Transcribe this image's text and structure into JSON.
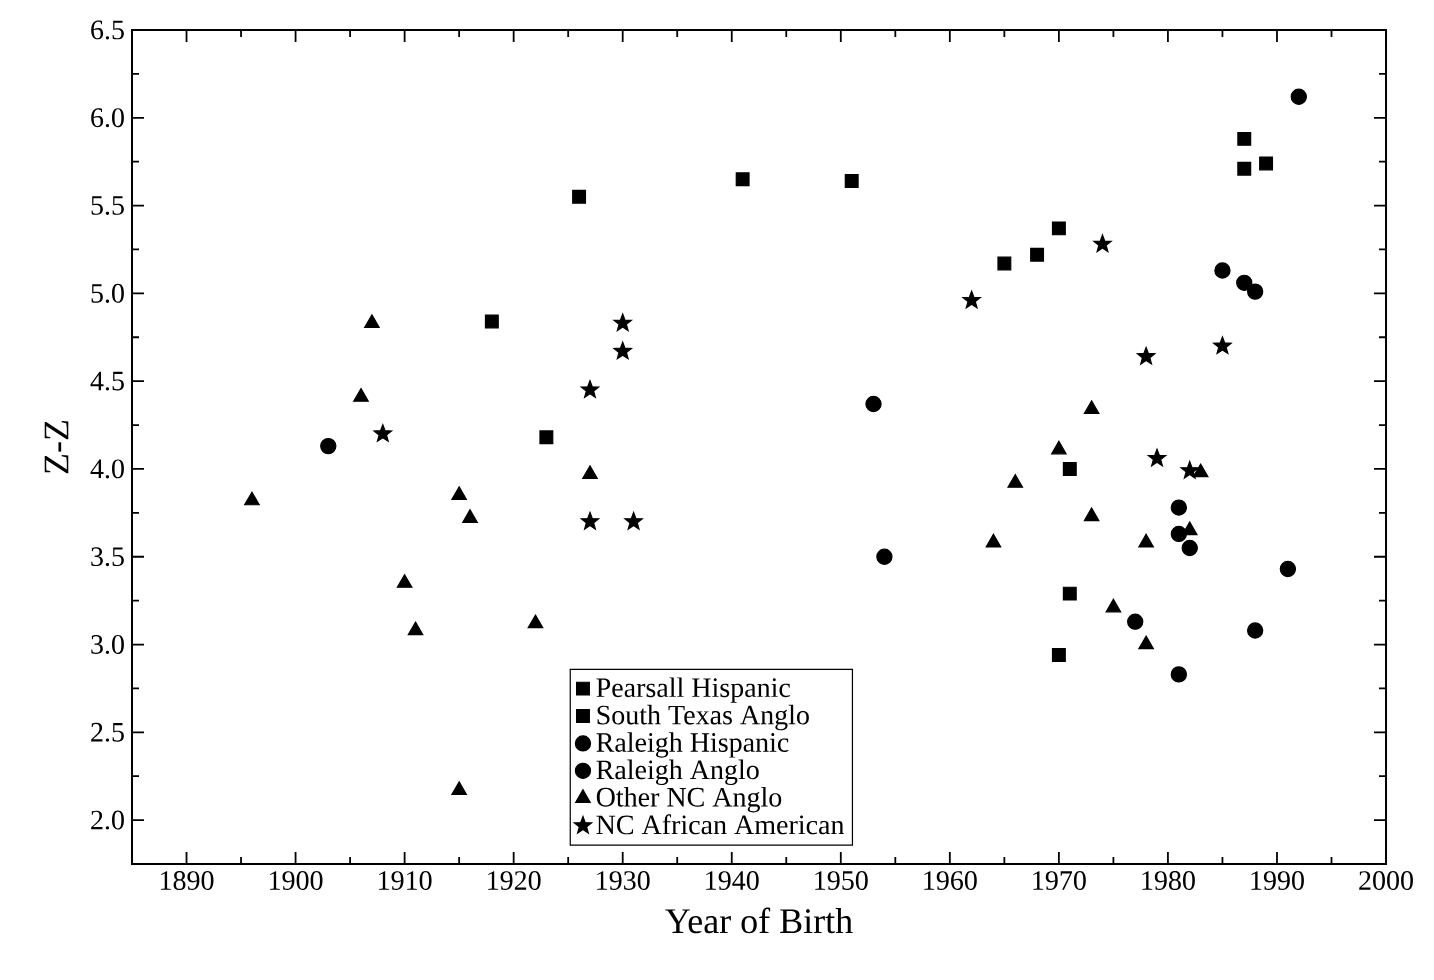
{
  "chart_data": {
    "type": "scatter",
    "xlabel": "Year of Birth",
    "ylabel": "Z-Z",
    "xlim": [
      1885,
      2000
    ],
    "ylim": [
      1.75,
      6.5
    ],
    "xticks": [
      1890,
      1900,
      1910,
      1920,
      1930,
      1940,
      1950,
      1960,
      1970,
      1980,
      1990,
      2000
    ],
    "yticks": [
      {
        "value": 2,
        "label": "2.0"
      },
      {
        "value": 2.5,
        "label": "2.5"
      },
      {
        "value": 3,
        "label": "3.0"
      },
      {
        "value": 3.5,
        "label": "3.5"
      },
      {
        "value": 4,
        "label": "4.0"
      },
      {
        "value": 4.5,
        "label": "4.5"
      },
      {
        "value": 5,
        "label": "5.0"
      },
      {
        "value": 5.5,
        "label": "5.5"
      },
      {
        "value": 6,
        "label": "6.0"
      },
      {
        "value": 6.5,
        "label": "6.5"
      }
    ],
    "grid": false,
    "legend": "bottom",
    "series": [
      {
        "name": "Pearsall Hispanic",
        "color": "#000000",
        "marker": "square",
        "x": [
          1918,
          1926,
          1941,
          1951,
          1965,
          1968,
          1970,
          1987,
          1987,
          1989
        ],
        "values": [
          4.84,
          5.55,
          5.65,
          5.64,
          5.17,
          5.22,
          5.37,
          5.88,
          5.71,
          5.74
        ]
      },
      {
        "name": "South Texas Anglo",
        "color": "#000000",
        "marker": "square",
        "x": [
          1923,
          1971,
          1971,
          1970
        ],
        "values": [
          4.18,
          4.0,
          3.29,
          2.94
        ]
      },
      {
        "name": "Raleigh Hispanic",
        "color": "#000000",
        "marker": "circle",
        "x": [
          1985,
          1987,
          1988,
          1992
        ],
        "values": [
          5.13,
          5.06,
          5.01,
          6.12
        ]
      },
      {
        "name": "Raleigh Anglo",
        "color": "#000000",
        "marker": "circle",
        "x": [
          1903,
          1953,
          1954,
          1981,
          1981,
          1982,
          1991,
          1977,
          1988,
          1981
        ],
        "values": [
          4.13,
          4.37,
          3.5,
          3.78,
          3.63,
          3.55,
          3.43,
          3.13,
          3.08,
          2.83
        ]
      },
      {
        "name": "Other NC Anglo",
        "color": "#000000",
        "marker": "triangle",
        "x": [
          1896,
          1906,
          1907,
          1910,
          1911,
          1915,
          1915,
          1916,
          1922,
          1927,
          1964,
          1966,
          1970,
          1973,
          1973,
          1975,
          1978,
          1978,
          1982,
          1983
        ],
        "values": [
          3.82,
          4.41,
          4.83,
          3.35,
          3.08,
          2.17,
          3.85,
          3.72,
          3.12,
          3.97,
          3.58,
          3.92,
          4.11,
          4.34,
          3.73,
          3.21,
          3.58,
          3.0,
          3.65,
          3.98
        ]
      },
      {
        "name": "NC African American",
        "color": "#000000",
        "marker": "star",
        "x": [
          1908,
          1927,
          1927,
          1930,
          1930,
          1931,
          1962,
          1974,
          1978,
          1979,
          1982,
          1985
        ],
        "values": [
          4.2,
          4.45,
          3.7,
          4.83,
          4.67,
          3.7,
          4.96,
          5.28,
          4.64,
          4.06,
          3.99,
          4.7
        ]
      }
    ]
  }
}
